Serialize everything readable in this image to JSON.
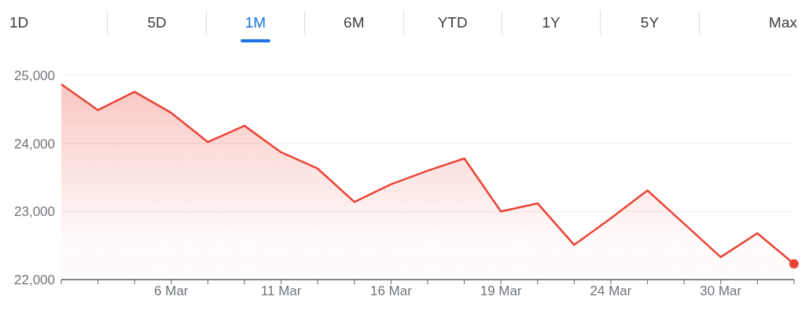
{
  "chart_data": {
    "type": "area",
    "categories": [
      null,
      null,
      null,
      "6 Mar",
      null,
      null,
      "11 Mar",
      null,
      null,
      "16 Mar",
      null,
      null,
      "19 Mar",
      null,
      null,
      "24 Mar",
      null,
      null,
      "30 Mar",
      null,
      null
    ],
    "series": [
      {
        "color": "#ea4335",
        "values": [
          24870,
          24490,
          24760,
          24450,
          24020,
          24260,
          23870,
          23630,
          23140,
          23400,
          23600,
          23780,
          23000,
          23120,
          22510,
          22900,
          23310,
          22820,
          22330,
          22680,
          22230
        ]
      }
    ],
    "ylim": [
      22000,
      25000
    ],
    "yticks": [
      {
        "value": 22000,
        "label": "22,000"
      },
      {
        "value": 23000,
        "label": "23,000"
      },
      {
        "value": 24000,
        "label": "24,000"
      },
      {
        "value": 25000,
        "label": "25,000"
      }
    ],
    "grid": "y",
    "marker": "none",
    "line_style": "solid",
    "annotations": [
      "1D",
      "5D",
      "1M",
      "6M",
      "YTD",
      "1Y",
      "5Y",
      "Max"
    ]
  }
}
